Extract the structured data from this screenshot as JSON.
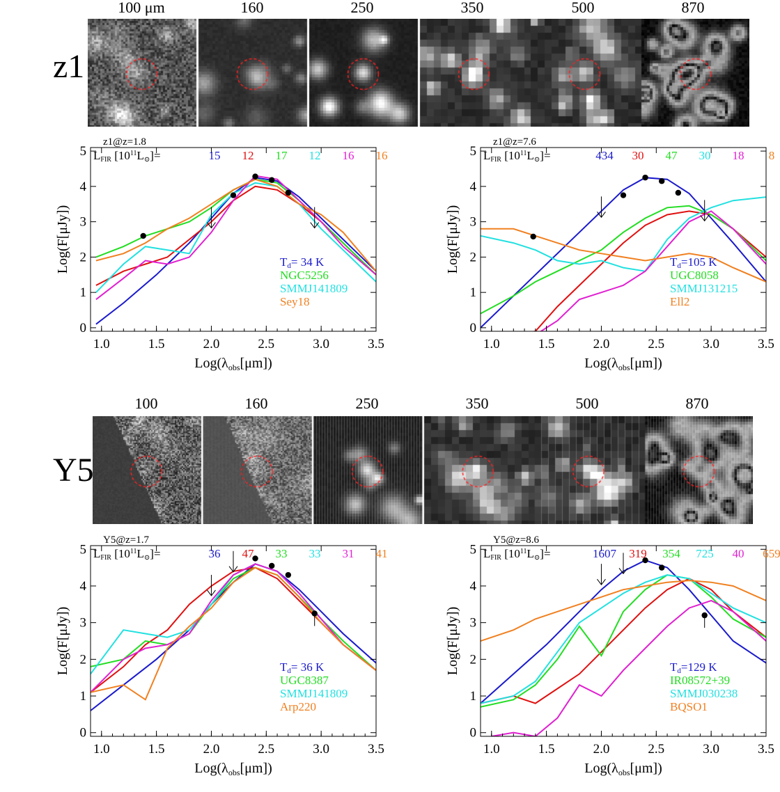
{
  "panels": [
    {
      "source": "z1",
      "stamp_titles": [
        "100 μm",
        "160",
        "250",
        "350",
        "500",
        "870"
      ],
      "stamp_seed": 11,
      "stamp_style": [
        "noise",
        "smooth",
        "blobs",
        "blocky",
        "blocky",
        "web"
      ],
      "left_plot": {
        "header": "z1@z=1.8",
        "lfir_label": "L",
        "lfir_sub": "FIR",
        "lfir_unit": "[10",
        "lfir_exp": "11",
        "lfir_close": "L",
        "lfir_sun": "⊙",
        "lfir_end": "]=",
        "lfir_values": [
          "15",
          "12",
          "17",
          "12",
          "16",
          "16"
        ],
        "legend": [
          "T",
          "d",
          "= 34 K",
          "NGC5256",
          "SMMJ141809",
          "Sey18"
        ]
      },
      "right_plot": {
        "header": "z1@z=7.6",
        "lfir_values": [
          "434",
          "30",
          "47",
          "30",
          "18",
          "8"
        ],
        "legend": [
          "T",
          "d",
          "=105 K",
          "UGC8058",
          "SMMJ131215",
          "Ell2"
        ]
      }
    },
    {
      "source": "Y5",
      "stamp_titles": [
        "100",
        "160",
        "250",
        "350",
        "500",
        "870"
      ],
      "stamp_seed": 29,
      "stamp_style": [
        "edge",
        "edge",
        "blobs",
        "blocky",
        "blocky",
        "web"
      ],
      "left_plot": {
        "header": "Y5@z=1.7",
        "lfir_values": [
          "36",
          "47",
          "33",
          "33",
          "31",
          "41"
        ],
        "legend": [
          "T",
          "d",
          "= 36 K",
          "UGC8387",
          "SMMJ141809",
          "Arp220"
        ]
      },
      "right_plot": {
        "header": "Y5@z=8.6",
        "lfir_values": [
          "1607",
          "319",
          "354",
          "725",
          "40",
          "659"
        ],
        "legend": [
          "T",
          "d",
          "=129 K",
          "IR08572+39",
          "SMMJ030238",
          "BQSO1"
        ]
      }
    }
  ],
  "axes": {
    "xlabel_pre": "Log(λ",
    "xlabel_sub": "obs",
    "xlabel_post": "[μm])",
    "ylabel": "Log(F[μJy])",
    "x_ticks": [
      "1.0",
      "1.5",
      "2.0",
      "2.5",
      "3.0",
      "3.5"
    ],
    "y_ticks": [
      "0",
      "1",
      "2",
      "3",
      "4",
      "5"
    ]
  },
  "colors": {
    "blue": "#1a1acc",
    "red": "#e01010",
    "green": "#22dd22",
    "cyan": "#22e0e0",
    "magenta": "#e020d0",
    "orange": "#f08020"
  },
  "chart_data": [
    {
      "type": "line",
      "title": "z1@z=1.8",
      "xlabel": "Log(λobs[μm])",
      "ylabel": "Log(F[μJy])",
      "xlim": [
        0.9,
        3.5
      ],
      "ylim": [
        -0.1,
        5.1
      ],
      "series": [
        {
          "name": "T_d= 34 K",
          "color": "blue",
          "x": [
            0.95,
            1.2,
            1.5,
            1.8,
            2.0,
            2.2,
            2.4,
            2.6,
            2.8,
            3.0,
            3.2,
            3.5
          ],
          "y": [
            0.1,
            0.7,
            1.5,
            2.4,
            3.1,
            3.8,
            4.25,
            4.15,
            3.7,
            3.1,
            2.5,
            1.6
          ]
        },
        {
          "name": "",
          "color": "red",
          "x": [
            0.95,
            1.2,
            1.4,
            1.6,
            1.8,
            2.0,
            2.2,
            2.4,
            2.6,
            2.8,
            3.0,
            3.2,
            3.5
          ],
          "y": [
            1.2,
            1.6,
            1.8,
            2.0,
            2.5,
            3.0,
            3.6,
            4.0,
            3.9,
            3.5,
            3.0,
            2.4,
            1.5
          ]
        },
        {
          "name": "NGC5256",
          "color": "green",
          "x": [
            0.95,
            1.2,
            1.4,
            1.6,
            1.8,
            2.0,
            2.2,
            2.4,
            2.6,
            2.8,
            3.0,
            3.2,
            3.5
          ],
          "y": [
            2.0,
            2.3,
            2.6,
            2.8,
            3.0,
            3.4,
            3.9,
            4.2,
            4.1,
            3.6,
            3.0,
            2.4,
            1.5
          ]
        },
        {
          "name": "SMMJ141809",
          "color": "cyan",
          "x": [
            0.95,
            1.2,
            1.4,
            1.6,
            1.8,
            2.0,
            2.2,
            2.4,
            2.6,
            2.8,
            3.0,
            3.2,
            3.5
          ],
          "y": [
            1.0,
            1.8,
            2.3,
            2.2,
            2.1,
            3.2,
            3.8,
            4.1,
            4.0,
            3.5,
            2.8,
            2.2,
            1.3
          ]
        },
        {
          "name": "",
          "color": "magenta",
          "x": [
            0.95,
            1.2,
            1.4,
            1.6,
            1.8,
            2.0,
            2.2,
            2.4,
            2.6,
            2.8,
            3.0,
            3.2,
            3.5
          ],
          "y": [
            0.8,
            1.4,
            1.9,
            1.8,
            2.0,
            2.7,
            3.6,
            4.3,
            4.2,
            3.6,
            3.0,
            2.3,
            1.5
          ]
        },
        {
          "name": "Sey18",
          "color": "orange",
          "x": [
            0.95,
            1.2,
            1.4,
            1.6,
            1.8,
            2.0,
            2.2,
            2.4,
            2.6,
            2.8,
            3.0,
            3.2,
            3.5
          ],
          "y": [
            1.9,
            2.1,
            2.4,
            2.8,
            3.1,
            3.5,
            3.9,
            4.2,
            4.0,
            3.5,
            3.2,
            2.7,
            1.6
          ]
        }
      ],
      "points": [
        {
          "x": 1.38,
          "y": 2.6
        },
        {
          "x": 2.2,
          "y": 3.75
        },
        {
          "x": 2.4,
          "y": 4.28
        },
        {
          "x": 2.55,
          "y": 4.18
        },
        {
          "x": 2.7,
          "y": 3.82
        }
      ],
      "upper_limits": [
        {
          "x": 2.0,
          "y": 3.1
        },
        {
          "x": 2.94,
          "y": 3.1
        }
      ]
    },
    {
      "type": "line",
      "title": "z1@z=7.6",
      "xlabel": "Log(λobs[μm])",
      "ylabel": "Log(F[μJy])",
      "xlim": [
        0.9,
        3.5
      ],
      "ylim": [
        -0.1,
        5.1
      ],
      "series": [
        {
          "name": "T_d=105 K",
          "color": "blue",
          "x": [
            0.9,
            1.2,
            1.5,
            1.8,
            2.0,
            2.2,
            2.4,
            2.6,
            2.8,
            3.0,
            3.2,
            3.5
          ],
          "y": [
            0.0,
            0.9,
            1.8,
            2.7,
            3.3,
            3.9,
            4.25,
            4.2,
            3.8,
            3.1,
            2.4,
            1.3
          ]
        },
        {
          "name": "",
          "color": "red",
          "x": [
            0.9,
            1.2,
            1.4,
            1.6,
            1.8,
            2.0,
            2.2,
            2.4,
            2.6,
            2.8,
            3.0,
            3.2,
            3.5
          ],
          "y": [
            -0.2,
            -0.2,
            -0.1,
            0.6,
            1.2,
            1.8,
            2.4,
            2.9,
            3.2,
            3.3,
            3.2,
            2.8,
            2.0
          ]
        },
        {
          "name": "UGC8058",
          "color": "green",
          "x": [
            0.9,
            1.2,
            1.4,
            1.6,
            1.8,
            2.0,
            2.2,
            2.4,
            2.6,
            2.8,
            3.0,
            3.2,
            3.5
          ],
          "y": [
            0.4,
            0.9,
            1.3,
            1.6,
            1.9,
            2.2,
            2.7,
            3.1,
            3.4,
            3.45,
            3.2,
            2.8,
            1.9
          ]
        },
        {
          "name": "SMMJ131215",
          "color": "cyan",
          "x": [
            0.9,
            1.2,
            1.4,
            1.6,
            1.8,
            2.0,
            2.2,
            2.4,
            2.6,
            2.8,
            3.0,
            3.2,
            3.5
          ],
          "y": [
            2.6,
            2.4,
            2.2,
            1.9,
            1.8,
            1.9,
            1.7,
            1.6,
            2.5,
            3.1,
            3.4,
            3.6,
            3.7
          ]
        },
        {
          "name": "",
          "color": "magenta",
          "x": [
            1.4,
            1.6,
            1.8,
            2.0,
            2.2,
            2.4,
            2.6,
            2.8,
            3.0,
            3.2,
            3.5
          ],
          "y": [
            -0.2,
            0.2,
            0.8,
            1.0,
            1.2,
            1.6,
            2.3,
            3.0,
            3.3,
            2.8,
            1.8
          ]
        },
        {
          "name": "Ell2",
          "color": "orange",
          "x": [
            0.9,
            1.2,
            1.4,
            1.6,
            1.8,
            2.0,
            2.2,
            2.4,
            2.6,
            2.8,
            3.0,
            3.2,
            3.5
          ],
          "y": [
            2.8,
            2.8,
            2.6,
            2.4,
            2.2,
            2.1,
            2.0,
            1.9,
            2.0,
            2.1,
            2.0,
            1.7,
            1.3
          ]
        }
      ],
      "points": [
        {
          "x": 1.38,
          "y": 2.58
        },
        {
          "x": 2.2,
          "y": 3.75
        },
        {
          "x": 2.4,
          "y": 4.25
        },
        {
          "x": 2.55,
          "y": 4.15
        },
        {
          "x": 2.7,
          "y": 3.82
        }
      ],
      "upper_limits": [
        {
          "x": 2.0,
          "y": 3.4
        },
        {
          "x": 2.94,
          "y": 3.3
        }
      ]
    },
    {
      "type": "line",
      "title": "Y5@z=1.7",
      "xlabel": "Log(λobs[μm])",
      "ylabel": "Log(F[μJy])",
      "xlim": [
        0.9,
        3.5
      ],
      "ylim": [
        -0.1,
        5.1
      ],
      "series": [
        {
          "name": "T_d= 36 K",
          "color": "blue",
          "x": [
            0.9,
            1.2,
            1.5,
            1.8,
            2.0,
            2.2,
            2.4,
            2.6,
            2.8,
            3.0,
            3.2,
            3.5
          ],
          "y": [
            0.6,
            1.3,
            2.0,
            2.8,
            3.5,
            4.1,
            4.6,
            4.4,
            3.9,
            3.3,
            2.7,
            1.9
          ]
        },
        {
          "name": "",
          "color": "red",
          "x": [
            0.9,
            1.2,
            1.4,
            1.6,
            1.8,
            2.0,
            2.2,
            2.4,
            2.6,
            2.8,
            3.0,
            3.2,
            3.5
          ],
          "y": [
            1.1,
            1.8,
            2.4,
            2.8,
            3.5,
            4.0,
            4.4,
            4.5,
            4.2,
            3.6,
            3.0,
            2.4,
            1.7
          ]
        },
        {
          "name": "UGC8387",
          "color": "green",
          "x": [
            0.9,
            1.2,
            1.4,
            1.6,
            1.8,
            2.0,
            2.2,
            2.4,
            2.6,
            2.8,
            3.0,
            3.2,
            3.5
          ],
          "y": [
            1.8,
            2.0,
            2.5,
            2.4,
            2.7,
            3.5,
            4.2,
            4.5,
            4.3,
            3.7,
            3.1,
            2.5,
            1.7
          ]
        },
        {
          "name": "SMMJ141809",
          "color": "cyan",
          "x": [
            0.9,
            1.2,
            1.4,
            1.6,
            1.8,
            2.0,
            2.2,
            2.4,
            2.6,
            2.8,
            3.0,
            3.2,
            3.5
          ],
          "y": [
            1.6,
            2.8,
            2.7,
            2.6,
            2.8,
            3.5,
            4.3,
            4.6,
            4.4,
            3.8,
            3.1,
            2.4,
            1.7
          ]
        },
        {
          "name": "",
          "color": "magenta",
          "x": [
            0.9,
            1.2,
            1.4,
            1.6,
            1.8,
            2.0,
            2.2,
            2.4,
            2.6,
            2.8,
            3.0,
            3.2,
            3.5
          ],
          "y": [
            1.1,
            2.0,
            2.3,
            2.4,
            2.7,
            3.6,
            4.3,
            4.6,
            4.4,
            3.8,
            3.1,
            2.4,
            1.7
          ]
        },
        {
          "name": "Arp220",
          "color": "orange",
          "x": [
            0.9,
            1.2,
            1.4,
            1.6,
            1.8,
            2.0,
            2.2,
            2.4,
            2.6,
            2.8,
            3.0,
            3.2,
            3.5
          ],
          "y": [
            1.1,
            1.3,
            0.9,
            2.3,
            2.9,
            3.4,
            4.1,
            4.5,
            4.3,
            3.7,
            3.0,
            2.4,
            1.7
          ]
        }
      ],
      "points": [
        {
          "x": 2.4,
          "y": 4.75
        },
        {
          "x": 2.55,
          "y": 4.55
        },
        {
          "x": 2.7,
          "y": 4.3
        },
        {
          "x": 2.94,
          "y": 3.25
        }
      ],
      "upper_limits": [
        {
          "x": 2.0,
          "y": 4.0
        },
        {
          "x": 2.2,
          "y": 4.65
        }
      ]
    },
    {
      "type": "line",
      "title": "Y5@z=8.6",
      "xlabel": "Log(λobs[μm])",
      "ylabel": "Log(F[μJy])",
      "xlim": [
        0.9,
        3.5
      ],
      "ylim": [
        -0.1,
        5.1
      ],
      "series": [
        {
          "name": "T_d=129 K",
          "color": "blue",
          "x": [
            0.9,
            1.2,
            1.5,
            1.8,
            2.0,
            2.2,
            2.4,
            2.6,
            2.8,
            3.0,
            3.2,
            3.5
          ],
          "y": [
            0.8,
            1.6,
            2.4,
            3.3,
            3.9,
            4.4,
            4.7,
            4.5,
            3.9,
            3.2,
            2.5,
            1.9
          ]
        },
        {
          "name": "",
          "color": "red",
          "x": [
            0.9,
            1.2,
            1.4,
            1.6,
            1.8,
            2.0,
            2.2,
            2.4,
            2.6,
            2.8,
            3.0,
            3.2,
            3.5
          ],
          "y": [
            0.8,
            1.0,
            0.8,
            1.2,
            1.6,
            2.2,
            2.8,
            3.4,
            3.9,
            4.2,
            3.9,
            3.3,
            2.6
          ]
        },
        {
          "name": "IR08572+39",
          "color": "green",
          "x": [
            0.9,
            1.2,
            1.4,
            1.6,
            1.8,
            2.0,
            2.2,
            2.4,
            2.6,
            2.8,
            3.0,
            3.2,
            3.5
          ],
          "y": [
            0.7,
            0.9,
            1.3,
            2.0,
            2.9,
            2.1,
            3.3,
            3.9,
            4.3,
            4.2,
            3.7,
            3.1,
            2.6
          ]
        },
        {
          "name": "SMMJ030238",
          "color": "cyan",
          "x": [
            0.9,
            1.2,
            1.4,
            1.6,
            1.8,
            2.0,
            2.2,
            2.4,
            2.6,
            2.8,
            3.0,
            3.2,
            3.5
          ],
          "y": [
            0.8,
            1.0,
            1.4,
            2.2,
            3.0,
            3.4,
            3.8,
            4.1,
            4.3,
            4.2,
            3.8,
            3.4,
            3.0
          ]
        },
        {
          "name": "",
          "color": "magenta",
          "x": [
            1.0,
            1.2,
            1.4,
            1.6,
            1.8,
            2.0,
            2.2,
            2.4,
            2.6,
            2.8,
            3.0,
            3.2,
            3.5
          ],
          "y": [
            -0.1,
            0.0,
            -0.1,
            0.4,
            1.3,
            1.0,
            1.7,
            2.3,
            2.9,
            3.4,
            3.6,
            3.3,
            2.5
          ]
        },
        {
          "name": "BQSO1",
          "color": "orange",
          "x": [
            0.9,
            1.2,
            1.4,
            1.6,
            1.8,
            2.0,
            2.2,
            2.4,
            2.6,
            2.8,
            3.0,
            3.2,
            3.5
          ],
          "y": [
            2.5,
            2.8,
            3.1,
            3.3,
            3.5,
            3.7,
            3.9,
            4.0,
            4.1,
            4.15,
            4.1,
            4.0,
            3.6
          ]
        }
      ],
      "points": [
        {
          "x": 2.4,
          "y": 4.7
        },
        {
          "x": 2.55,
          "y": 4.5
        },
        {
          "x": 2.94,
          "y": 3.2
        }
      ],
      "upper_limits": [
        {
          "x": 2.0,
          "y": 4.3
        },
        {
          "x": 2.2,
          "y": 4.6
        }
      ]
    }
  ]
}
